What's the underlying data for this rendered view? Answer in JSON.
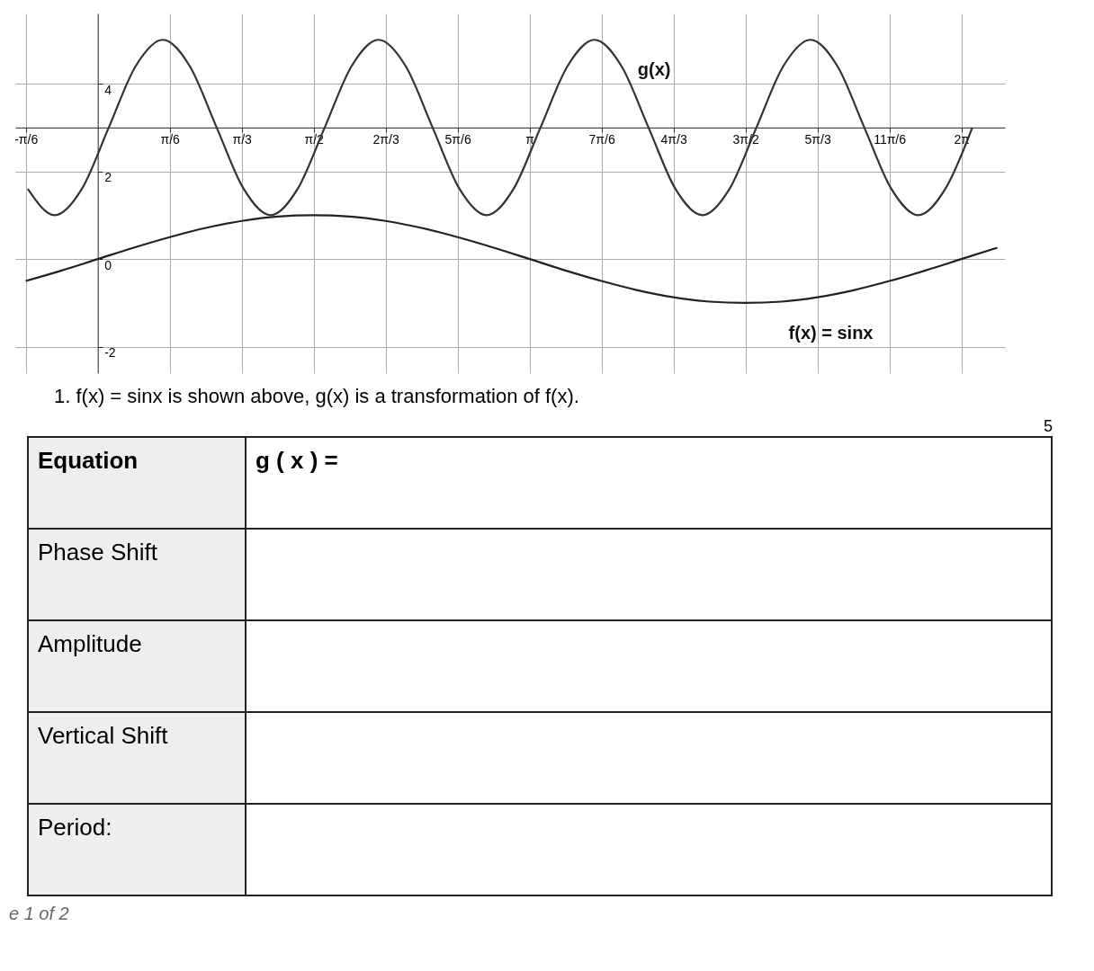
{
  "chart_data": {
    "type": "line",
    "series": [
      {
        "name": "g(x)",
        "color": "#333333",
        "x": [
          -0.509,
          -0.313,
          -0.116,
          0.08,
          0.276,
          0.473,
          0.669,
          0.865,
          1.062,
          1.258,
          1.454,
          1.651,
          1.847,
          2.043,
          2.24,
          2.436,
          2.632,
          2.829,
          3.025,
          3.221,
          3.418,
          3.614,
          3.81,
          4.007,
          4.203,
          4.399,
          4.596,
          4.792,
          4.988,
          5.185,
          5.381,
          5.577,
          5.774,
          5.97,
          6.166,
          6.363
        ],
        "values": [
          1.6,
          1,
          1.6,
          3,
          4.4,
          5,
          4.4,
          3,
          1.6,
          1,
          1.6,
          3,
          4.4,
          5,
          4.4,
          3,
          1.6,
          1,
          1.6,
          3,
          4.4,
          5,
          4.4,
          3,
          1.6,
          1,
          1.6,
          3,
          4.4,
          5,
          4.4,
          3,
          1.6,
          1,
          1.6,
          3
        ]
      },
      {
        "name": "f(x) = sinx",
        "color": "#222222",
        "x": [
          -0.524,
          -0.262,
          0,
          0.262,
          0.524,
          0.785,
          1.047,
          1.309,
          1.571,
          1.833,
          2.094,
          2.356,
          2.618,
          2.88,
          3.142,
          3.403,
          3.665,
          3.927,
          4.189,
          4.451,
          4.712,
          4.974,
          5.236,
          5.498,
          5.76,
          6.021,
          6.283,
          6.545
        ],
        "values": [
          -0.5,
          -0.26,
          0,
          0.26,
          0.5,
          0.71,
          0.87,
          0.97,
          1,
          0.97,
          0.87,
          0.71,
          0.5,
          0.26,
          0,
          -0.26,
          -0.5,
          -0.71,
          -0.87,
          -0.97,
          -1,
          -0.97,
          -0.87,
          -0.71,
          -0.5,
          -0.26,
          0,
          0.26
        ]
      }
    ],
    "xlim": [
      -0.6,
      6.6
    ],
    "ylim": [
      -2.6,
      5.6
    ],
    "xticks": [
      {
        "value": -0.5236,
        "label": "-π/6"
      },
      {
        "value": 0.5236,
        "label": "π/6"
      },
      {
        "value": 1.0472,
        "label": "π/3"
      },
      {
        "value": 1.5708,
        "label": "π/2"
      },
      {
        "value": 2.0944,
        "label": "2π/3"
      },
      {
        "value": 2.618,
        "label": "5π/6"
      },
      {
        "value": 3.1416,
        "label": "π"
      },
      {
        "value": 3.6652,
        "label": "7π/6"
      },
      {
        "value": 4.1888,
        "label": "4π/3"
      },
      {
        "value": 4.7124,
        "label": "3π/2"
      },
      {
        "value": 5.236,
        "label": "5π/3"
      },
      {
        "value": 5.7596,
        "label": "11π/6"
      },
      {
        "value": 6.2832,
        "label": "2π"
      }
    ],
    "yticks": [
      -2,
      0,
      2,
      4
    ],
    "grid": true,
    "legend": false,
    "marker": "none",
    "line_style": "solid",
    "annotations": [
      "1.  f(x) = sinx is shown above, g(x) is a transformation of f(x).",
      "Equation",
      "g ( x ) =",
      "Phase Shift",
      "Amplitude",
      "Vertical Shift",
      "Period:",
      "5",
      "e 1 of 2"
    ]
  }
}
